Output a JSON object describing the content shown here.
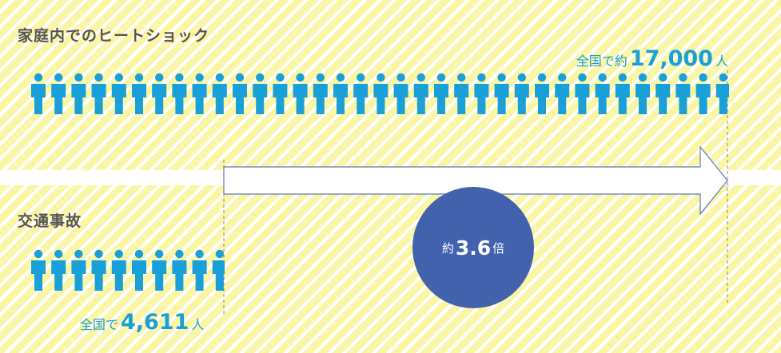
{
  "colors": {
    "band": "#fbf5a6",
    "figure": "#1aa0d8",
    "circle": "#4262ad",
    "heading": "#555555"
  },
  "icon": "person-icon",
  "chart_data": {
    "type": "pictogram",
    "series": [
      {
        "name": "家庭内でのヒートショック",
        "value": 17000,
        "label": {
          "prefix": "全国で約",
          "number": "17,000",
          "unit": "人"
        }
      },
      {
        "name": "交通事故",
        "value": 4611,
        "label": {
          "prefix": "全国で",
          "number": "4,611",
          "unit": "人"
        }
      }
    ],
    "ratio": {
      "prefix": "約",
      "value": "3.6",
      "unit": "倍"
    }
  }
}
